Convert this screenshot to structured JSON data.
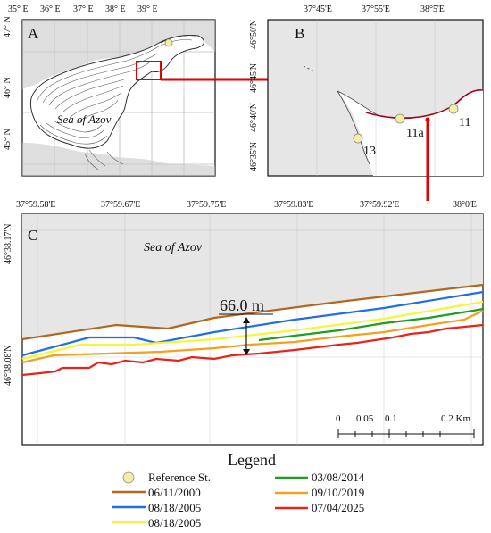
{
  "panelA": {
    "letter": "A",
    "sea_label": "Sea of Azov",
    "lon_ticks": [
      "35° E",
      "36° E",
      "37° E",
      "38° E",
      "39° E"
    ],
    "lat_ticks": [
      "47° N",
      "46° N",
      "45° N"
    ]
  },
  "panelB": {
    "letter": "B",
    "lon_ticks": [
      "37°45'E",
      "37°55'E",
      "38°5'E"
    ],
    "lat_ticks": [
      "46°50'N",
      "46°45'N",
      "46°40'N",
      "46°35'N"
    ],
    "stations": [
      {
        "label": "13",
        "color": "#f6eea0"
      },
      {
        "label": "11a",
        "color": "#f6eea0"
      },
      {
        "label": "11",
        "color": "#f6eea0"
      }
    ]
  },
  "panelC": {
    "letter": "C",
    "sea_label": "Sea of Azov",
    "lon_ticks": [
      "37°59.58'E",
      "37°59.67'E",
      "37°59.75'E",
      "37°59.83'E",
      "37°59.92'E",
      "38°0'E"
    ],
    "lat_ticks": [
      "46°38.17'N",
      "46°38.08'N"
    ],
    "measurement": "66.0 m",
    "scale_labels": [
      "0",
      "0.05",
      "0.1",
      "0.2 Km"
    ]
  },
  "legend": {
    "title": "Legend",
    "items": [
      {
        "label": "Reference St.",
        "color": "#f6eea0",
        "kind": "circle"
      },
      {
        "label": "06/11/2000",
        "color": "#b5651d",
        "kind": "line"
      },
      {
        "label": "08/18/2005",
        "color": "#1f6fe0",
        "kind": "line"
      },
      {
        "label": "08/18/2005",
        "color": "#f5f53a",
        "kind": "line"
      },
      {
        "label": "03/08/2014",
        "color": "#1f9e1f",
        "kind": "line"
      },
      {
        "label": "09/10/2019",
        "color": "#f5a01e",
        "kind": "line"
      },
      {
        "label": "07/04/2025",
        "color": "#e8231a",
        "kind": "line"
      }
    ]
  },
  "colors": {
    "sea": "#e6e6e6",
    "connector": "#e00000",
    "coast": "#a0001a"
  }
}
